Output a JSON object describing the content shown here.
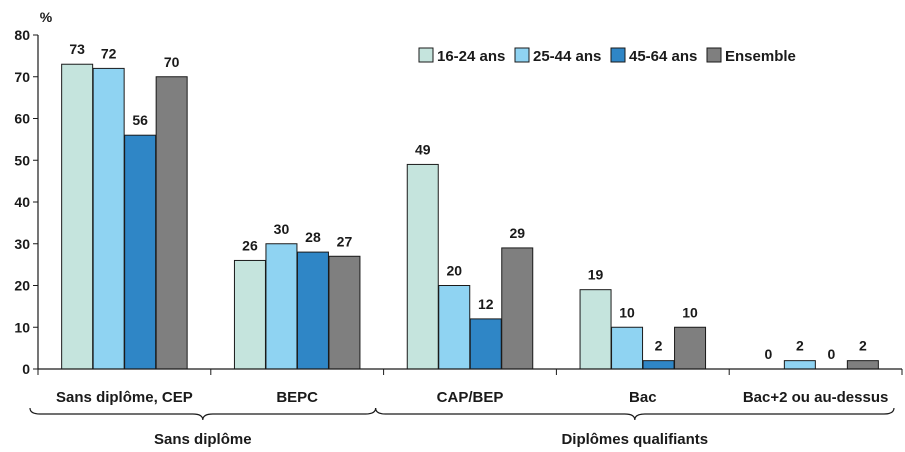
{
  "chart_data": {
    "type": "bar",
    "ylabel": "%",
    "ylim": [
      0,
      80
    ],
    "yticks": [
      0,
      10,
      20,
      30,
      40,
      50,
      60,
      70,
      80
    ],
    "categories": [
      "Sans diplôme, CEP",
      "BEPC",
      "CAP/BEP",
      "Bac",
      "Bac+2 ou au-dessus"
    ],
    "groups": [
      {
        "label": "Sans diplôme",
        "categories": [
          "Sans diplôme, CEP",
          "BEPC"
        ]
      },
      {
        "label": "Diplômes qualifiants",
        "categories": [
          "CAP/BEP",
          "Bac",
          "Bac+2 ou au-dessus"
        ]
      }
    ],
    "series": [
      {
        "name": "16-24 ans",
        "color": "#c5e4dd",
        "values": [
          73,
          26,
          49,
          19,
          0
        ],
        "labels": [
          "73",
          "26",
          "49",
          "19",
          "0"
        ]
      },
      {
        "name": "25-44 ans",
        "color": "#8fd3f2",
        "values": [
          72,
          30,
          20,
          10,
          2
        ],
        "labels": [
          "72",
          "30",
          "20",
          "10",
          "2"
        ]
      },
      {
        "name": "45-64 ans",
        "color": "#2f86c6",
        "values": [
          56,
          28,
          12,
          2,
          0
        ],
        "labels": [
          "56",
          "28",
          "12",
          "2",
          "0"
        ]
      },
      {
        "name": "Ensemble",
        "color": "#7f7f7f",
        "values": [
          70,
          27,
          29,
          10,
          2
        ],
        "labels": [
          "70",
          "27",
          "29",
          "10",
          "2"
        ]
      }
    ],
    "legend_position": "top-right",
    "grid": false
  }
}
